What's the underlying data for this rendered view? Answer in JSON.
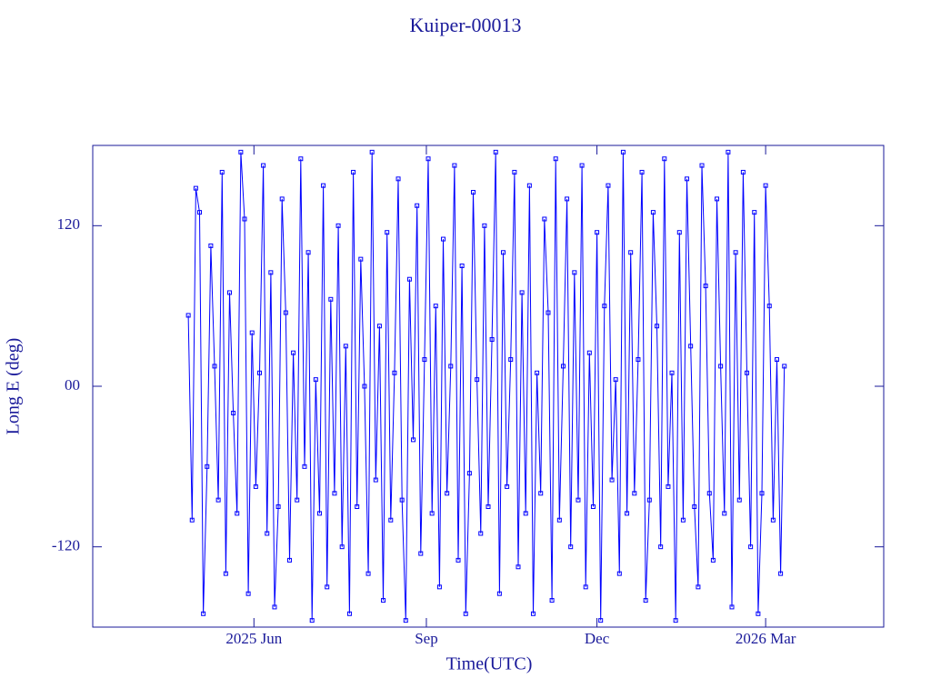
{
  "chart_data": {
    "type": "line",
    "title": "Kuiper-00013",
    "xlabel": "Time(UTC)",
    "ylabel": "Long E (deg)",
    "x": [
      116,
      118,
      120,
      122,
      124,
      126,
      128,
      130,
      132,
      134,
      136,
      138,
      140,
      142,
      144,
      146,
      148,
      150,
      152,
      154,
      156,
      158,
      160,
      162,
      164,
      166,
      168,
      170,
      172,
      174,
      176,
      178,
      180,
      182,
      184,
      186,
      188,
      190,
      192,
      194,
      196,
      198,
      200,
      202,
      204,
      206,
      208,
      210,
      212,
      214,
      216,
      218,
      220,
      222,
      224,
      226,
      228,
      230,
      232,
      234,
      236,
      238,
      240,
      242,
      244,
      246,
      248,
      250,
      252,
      254,
      256,
      258,
      260,
      262,
      264,
      266,
      268,
      270,
      272,
      274,
      276,
      278,
      280,
      282,
      284,
      286,
      288,
      290,
      292,
      294,
      296,
      298,
      300,
      302,
      304,
      306,
      308,
      310,
      312,
      314,
      316,
      318,
      320,
      322,
      324,
      326,
      328,
      330,
      332,
      334,
      336,
      338,
      340,
      342,
      344,
      346,
      348,
      350,
      352,
      354,
      356,
      358,
      360,
      362,
      364,
      366,
      368,
      370,
      372,
      374,
      376,
      378,
      380,
      382,
      384,
      386,
      388,
      390,
      392,
      394,
      396,
      398,
      400,
      402,
      404,
      406,
      408,
      410,
      412,
      414,
      416,
      418,
      420,
      422,
      424,
      426,
      428,
      430,
      432,
      434
    ],
    "series": [
      {
        "name": "Long E",
        "color": "#0000ff",
        "values": [
          53,
          -100,
          148,
          130,
          -170,
          -60,
          105,
          15,
          -85,
          160,
          -140,
          70,
          -20,
          -95,
          175,
          125,
          -155,
          40,
          -75,
          10,
          165,
          -110,
          85,
          -165,
          -90,
          140,
          55,
          -130,
          25,
          -85,
          170,
          -60,
          100,
          -175,
          5,
          -95,
          150,
          -150,
          65,
          -80,
          120,
          -120,
          30,
          -170,
          160,
          -90,
          95,
          0,
          -140,
          175,
          -70,
          45,
          -160,
          115,
          -100,
          10,
          155,
          -85,
          -175,
          80,
          -40,
          135,
          -125,
          20,
          170,
          -95,
          60,
          -150,
          110,
          -80,
          15,
          165,
          -130,
          90,
          -170,
          -65,
          145,
          5,
          -110,
          120,
          -90,
          35,
          175,
          -155,
          100,
          -75,
          20,
          160,
          -135,
          70,
          -95,
          150,
          -170,
          10,
          -80,
          125,
          55,
          -160,
          170,
          -100,
          15,
          140,
          -120,
          85,
          -85,
          165,
          -150,
          25,
          -90,
          115,
          -175,
          60,
          150,
          -70,
          5,
          -140,
          175,
          -95,
          100,
          -80,
          20,
          160,
          -160,
          -85,
          130,
          45,
          -120,
          170,
          -75,
          10,
          -175,
          115,
          -100,
          155,
          30,
          -90,
          -150,
          165,
          75,
          -80,
          -130,
          140,
          15,
          -95,
          175,
          -165,
          100,
          -85,
          160,
          10,
          -120,
          130,
          -170,
          -80,
          150,
          60,
          -100,
          20,
          -140,
          15
        ]
      }
    ],
    "xlim": [
      65,
      487
    ],
    "xticks": [
      {
        "value": 151,
        "label": "2025 Jun"
      },
      {
        "value": 243,
        "label": "Sep"
      },
      {
        "value": 334,
        "label": "Dec"
      },
      {
        "value": 424,
        "label": "2026 Mar"
      }
    ],
    "ylim": [
      -180,
      180
    ],
    "yticks": [
      -120,
      {
        "value": 0,
        "label": "00"
      },
      120
    ],
    "axis_color": "#1a1a9a"
  }
}
